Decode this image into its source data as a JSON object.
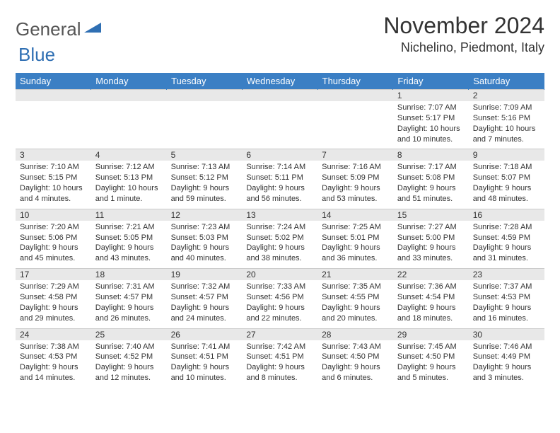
{
  "logo": {
    "word1": "General",
    "word2": "Blue",
    "color1": "#6a6a6a",
    "color2": "#2f6fb3",
    "tri_color": "#2f6fb3"
  },
  "title": "November 2024",
  "location": "Nichelino, Piedmont, Italy",
  "header_bg": "#3b7fc4",
  "daynum_bg": "#e8e8e8",
  "weekdays": [
    "Sunday",
    "Monday",
    "Tuesday",
    "Wednesday",
    "Thursday",
    "Friday",
    "Saturday"
  ],
  "weeks": [
    {
      "nums": [
        "",
        "",
        "",
        "",
        "",
        "1",
        "2"
      ],
      "cells": [
        {
          "sunrise": "",
          "sunset": "",
          "daylight": ""
        },
        {
          "sunrise": "",
          "sunset": "",
          "daylight": ""
        },
        {
          "sunrise": "",
          "sunset": "",
          "daylight": ""
        },
        {
          "sunrise": "",
          "sunset": "",
          "daylight": ""
        },
        {
          "sunrise": "",
          "sunset": "",
          "daylight": ""
        },
        {
          "sunrise": "Sunrise: 7:07 AM",
          "sunset": "Sunset: 5:17 PM",
          "daylight": "Daylight: 10 hours and 10 minutes."
        },
        {
          "sunrise": "Sunrise: 7:09 AM",
          "sunset": "Sunset: 5:16 PM",
          "daylight": "Daylight: 10 hours and 7 minutes."
        }
      ]
    },
    {
      "nums": [
        "3",
        "4",
        "5",
        "6",
        "7",
        "8",
        "9"
      ],
      "cells": [
        {
          "sunrise": "Sunrise: 7:10 AM",
          "sunset": "Sunset: 5:15 PM",
          "daylight": "Daylight: 10 hours and 4 minutes."
        },
        {
          "sunrise": "Sunrise: 7:12 AM",
          "sunset": "Sunset: 5:13 PM",
          "daylight": "Daylight: 10 hours and 1 minute."
        },
        {
          "sunrise": "Sunrise: 7:13 AM",
          "sunset": "Sunset: 5:12 PM",
          "daylight": "Daylight: 9 hours and 59 minutes."
        },
        {
          "sunrise": "Sunrise: 7:14 AM",
          "sunset": "Sunset: 5:11 PM",
          "daylight": "Daylight: 9 hours and 56 minutes."
        },
        {
          "sunrise": "Sunrise: 7:16 AM",
          "sunset": "Sunset: 5:09 PM",
          "daylight": "Daylight: 9 hours and 53 minutes."
        },
        {
          "sunrise": "Sunrise: 7:17 AM",
          "sunset": "Sunset: 5:08 PM",
          "daylight": "Daylight: 9 hours and 51 minutes."
        },
        {
          "sunrise": "Sunrise: 7:18 AM",
          "sunset": "Sunset: 5:07 PM",
          "daylight": "Daylight: 9 hours and 48 minutes."
        }
      ]
    },
    {
      "nums": [
        "10",
        "11",
        "12",
        "13",
        "14",
        "15",
        "16"
      ],
      "cells": [
        {
          "sunrise": "Sunrise: 7:20 AM",
          "sunset": "Sunset: 5:06 PM",
          "daylight": "Daylight: 9 hours and 45 minutes."
        },
        {
          "sunrise": "Sunrise: 7:21 AM",
          "sunset": "Sunset: 5:05 PM",
          "daylight": "Daylight: 9 hours and 43 minutes."
        },
        {
          "sunrise": "Sunrise: 7:23 AM",
          "sunset": "Sunset: 5:03 PM",
          "daylight": "Daylight: 9 hours and 40 minutes."
        },
        {
          "sunrise": "Sunrise: 7:24 AM",
          "sunset": "Sunset: 5:02 PM",
          "daylight": "Daylight: 9 hours and 38 minutes."
        },
        {
          "sunrise": "Sunrise: 7:25 AM",
          "sunset": "Sunset: 5:01 PM",
          "daylight": "Daylight: 9 hours and 36 minutes."
        },
        {
          "sunrise": "Sunrise: 7:27 AM",
          "sunset": "Sunset: 5:00 PM",
          "daylight": "Daylight: 9 hours and 33 minutes."
        },
        {
          "sunrise": "Sunrise: 7:28 AM",
          "sunset": "Sunset: 4:59 PM",
          "daylight": "Daylight: 9 hours and 31 minutes."
        }
      ]
    },
    {
      "nums": [
        "17",
        "18",
        "19",
        "20",
        "21",
        "22",
        "23"
      ],
      "cells": [
        {
          "sunrise": "Sunrise: 7:29 AM",
          "sunset": "Sunset: 4:58 PM",
          "daylight": "Daylight: 9 hours and 29 minutes."
        },
        {
          "sunrise": "Sunrise: 7:31 AM",
          "sunset": "Sunset: 4:57 PM",
          "daylight": "Daylight: 9 hours and 26 minutes."
        },
        {
          "sunrise": "Sunrise: 7:32 AM",
          "sunset": "Sunset: 4:57 PM",
          "daylight": "Daylight: 9 hours and 24 minutes."
        },
        {
          "sunrise": "Sunrise: 7:33 AM",
          "sunset": "Sunset: 4:56 PM",
          "daylight": "Daylight: 9 hours and 22 minutes."
        },
        {
          "sunrise": "Sunrise: 7:35 AM",
          "sunset": "Sunset: 4:55 PM",
          "daylight": "Daylight: 9 hours and 20 minutes."
        },
        {
          "sunrise": "Sunrise: 7:36 AM",
          "sunset": "Sunset: 4:54 PM",
          "daylight": "Daylight: 9 hours and 18 minutes."
        },
        {
          "sunrise": "Sunrise: 7:37 AM",
          "sunset": "Sunset: 4:53 PM",
          "daylight": "Daylight: 9 hours and 16 minutes."
        }
      ]
    },
    {
      "nums": [
        "24",
        "25",
        "26",
        "27",
        "28",
        "29",
        "30"
      ],
      "cells": [
        {
          "sunrise": "Sunrise: 7:38 AM",
          "sunset": "Sunset: 4:53 PM",
          "daylight": "Daylight: 9 hours and 14 minutes."
        },
        {
          "sunrise": "Sunrise: 7:40 AM",
          "sunset": "Sunset: 4:52 PM",
          "daylight": "Daylight: 9 hours and 12 minutes."
        },
        {
          "sunrise": "Sunrise: 7:41 AM",
          "sunset": "Sunset: 4:51 PM",
          "daylight": "Daylight: 9 hours and 10 minutes."
        },
        {
          "sunrise": "Sunrise: 7:42 AM",
          "sunset": "Sunset: 4:51 PM",
          "daylight": "Daylight: 9 hours and 8 minutes."
        },
        {
          "sunrise": "Sunrise: 7:43 AM",
          "sunset": "Sunset: 4:50 PM",
          "daylight": "Daylight: 9 hours and 6 minutes."
        },
        {
          "sunrise": "Sunrise: 7:45 AM",
          "sunset": "Sunset: 4:50 PM",
          "daylight": "Daylight: 9 hours and 5 minutes."
        },
        {
          "sunrise": "Sunrise: 7:46 AM",
          "sunset": "Sunset: 4:49 PM",
          "daylight": "Daylight: 9 hours and 3 minutes."
        }
      ]
    }
  ]
}
